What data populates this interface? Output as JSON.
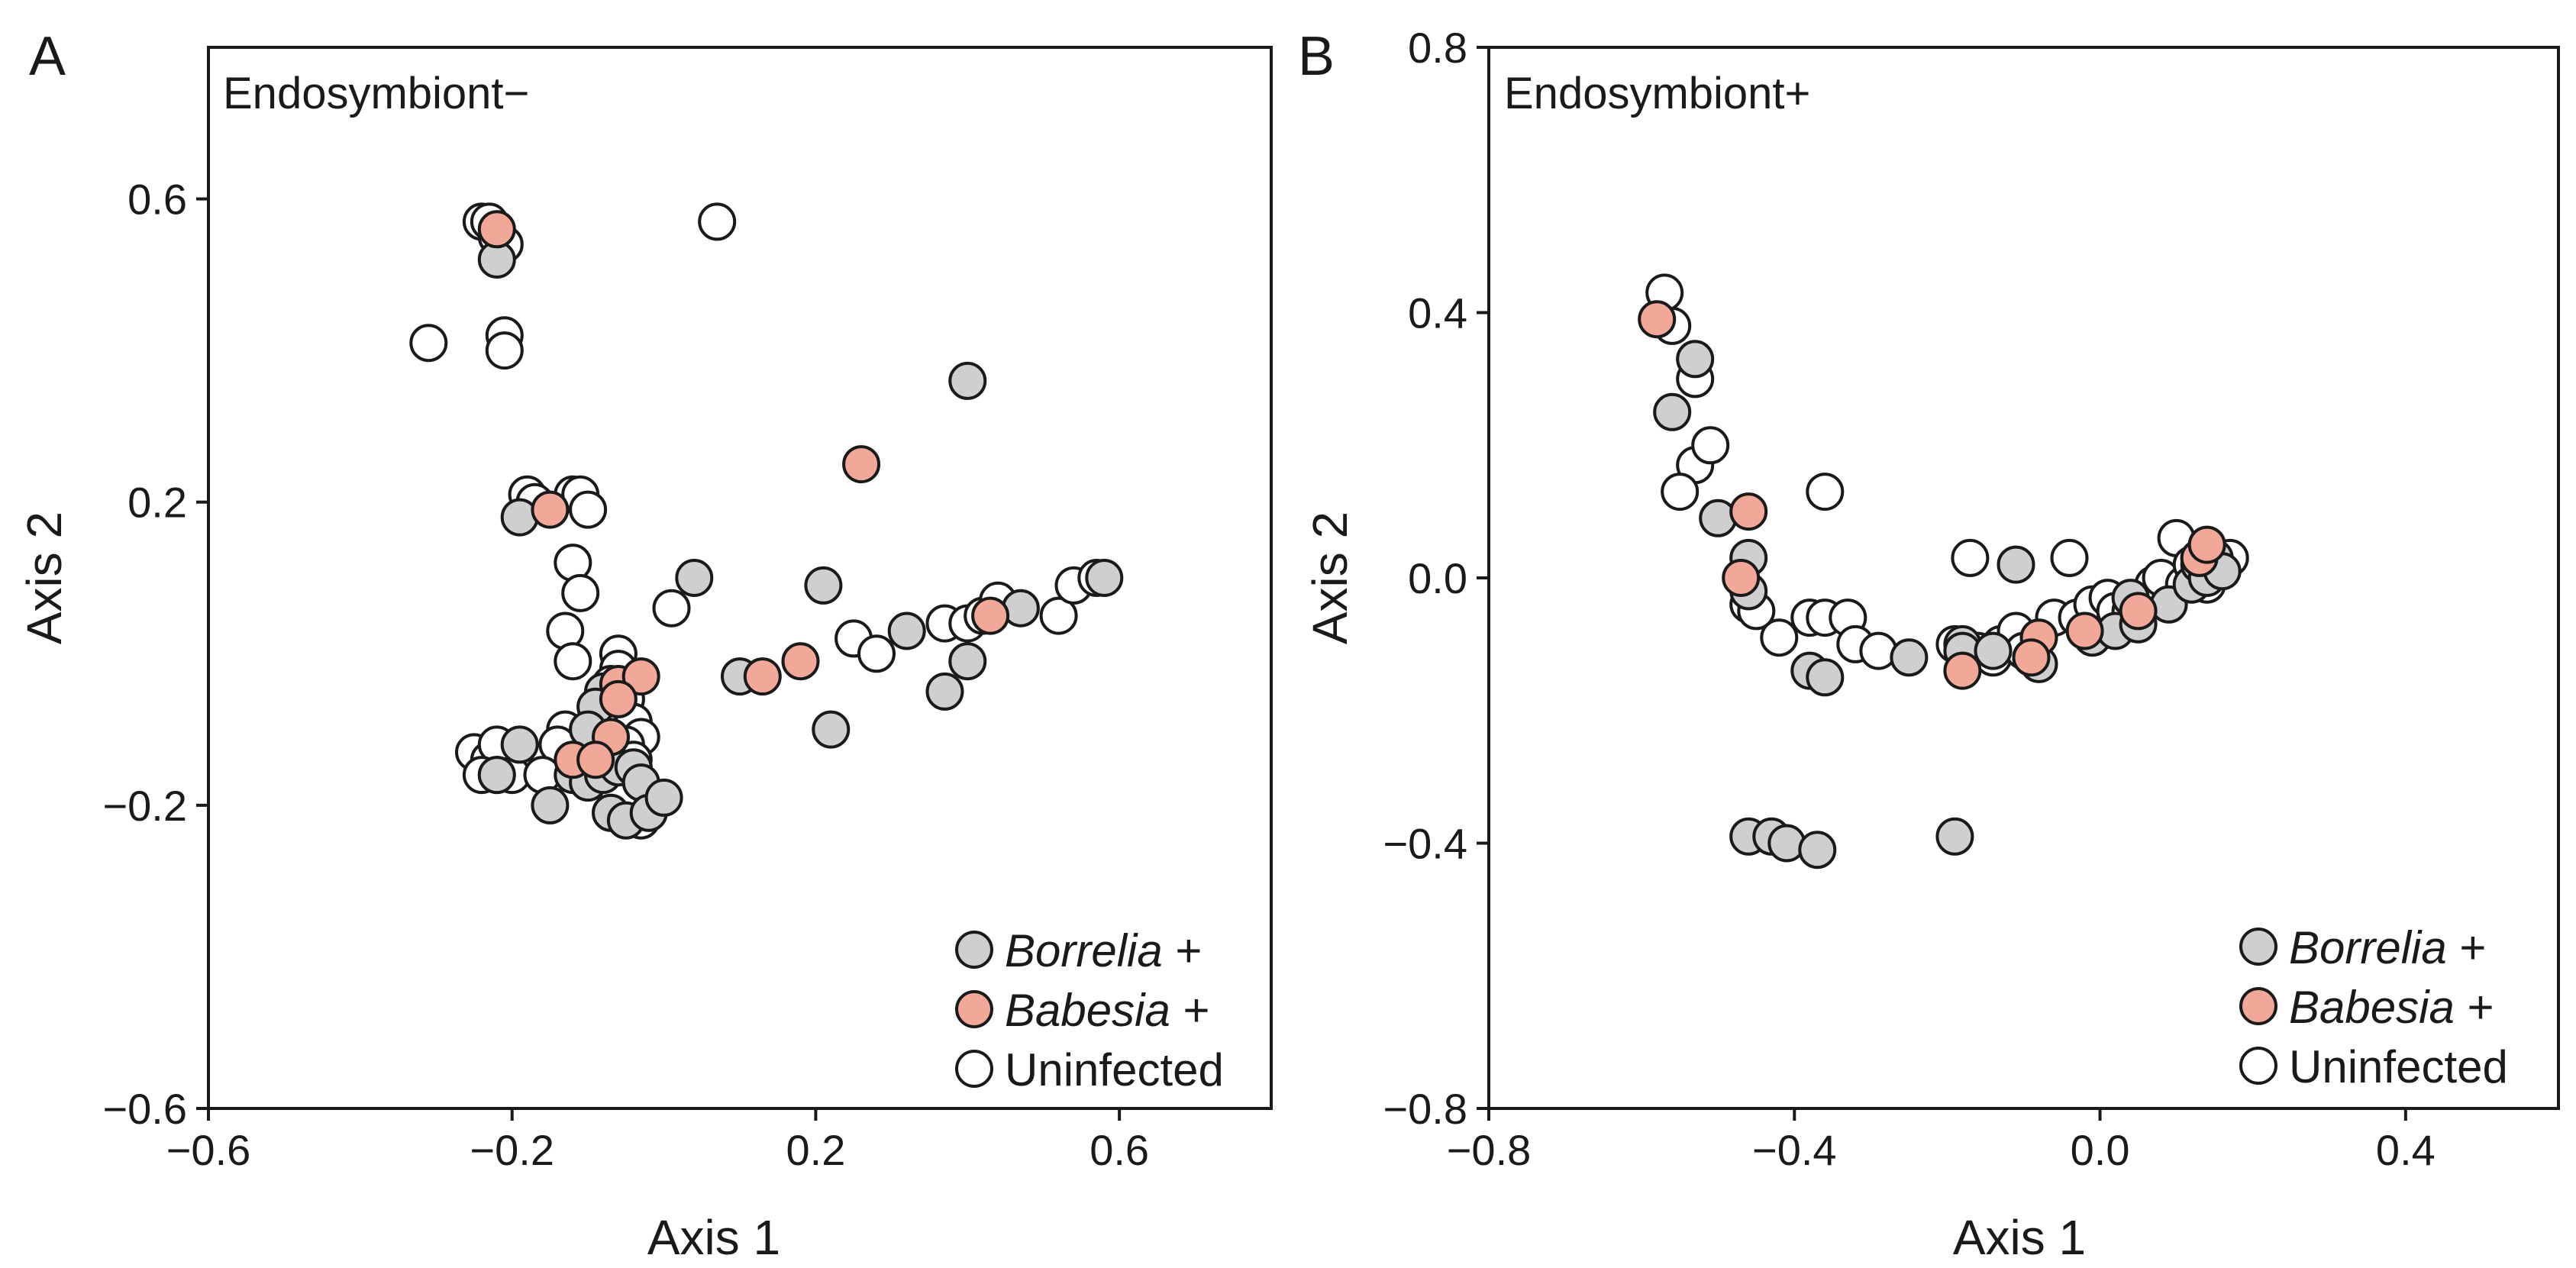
{
  "colors": {
    "borrelia": "#cfcfcf",
    "babesia": "#f2a898",
    "uninfected": "#ffffff",
    "stroke": "#1a1a1a"
  },
  "chart_data": [
    {
      "type": "scatter",
      "panel_label": "A",
      "title": "Endosymbiont−",
      "xlabel": "Axis 1",
      "ylabel": "Axis 2",
      "xlim": [
        -0.6,
        0.8
      ],
      "ylim": [
        -0.6,
        0.8
      ],
      "xticks": [
        -0.6,
        -0.2,
        0.2,
        0.6
      ],
      "xtick_labels": [
        "−0.6",
        "−0.2",
        "0.2",
        "0.6"
      ],
      "yticks": [
        -0.6,
        -0.2,
        0.2,
        0.6
      ],
      "ytick_labels": [
        "−0.6",
        "−0.2",
        "0.2",
        "0.6"
      ],
      "legend_position": "bottom-right",
      "legend": [
        {
          "key": "borrelia",
          "italic": "Borrelia",
          "suffix": " +"
        },
        {
          "key": "babesia",
          "italic": "Babesia",
          "suffix": " +"
        },
        {
          "key": "uninfected",
          "italic": "",
          "suffix": "Uninfected"
        }
      ],
      "series": [
        {
          "name": "Uninfected",
          "key": "uninfected",
          "points": [
            [
              -0.24,
              0.57
            ],
            [
              -0.23,
              0.57
            ],
            [
              -0.22,
              0.55
            ],
            [
              -0.21,
              0.54
            ],
            [
              -0.31,
              0.41
            ],
            [
              -0.21,
              0.42
            ],
            [
              -0.21,
              0.4
            ],
            [
              0.07,
              0.57
            ],
            [
              -0.18,
              0.21
            ],
            [
              -0.17,
              0.2
            ],
            [
              -0.12,
              0.21
            ],
            [
              -0.11,
              0.21
            ],
            [
              -0.1,
              0.19
            ],
            [
              -0.12,
              0.12
            ],
            [
              -0.11,
              0.08
            ],
            [
              -0.13,
              0.03
            ],
            [
              0.01,
              0.06
            ],
            [
              -0.12,
              -0.01
            ],
            [
              -0.06,
              0.0
            ],
            [
              -0.06,
              -0.02
            ],
            [
              -0.07,
              -0.04
            ],
            [
              -0.05,
              -0.06
            ],
            [
              -0.08,
              -0.07
            ],
            [
              -0.04,
              -0.09
            ],
            [
              -0.03,
              -0.11
            ],
            [
              -0.09,
              -0.11
            ],
            [
              -0.13,
              -0.1
            ],
            [
              -0.14,
              -0.12
            ],
            [
              -0.11,
              -0.14
            ],
            [
              -0.06,
              -0.15
            ],
            [
              -0.05,
              -0.12
            ],
            [
              -0.04,
              -0.14
            ],
            [
              -0.25,
              -0.13
            ],
            [
              -0.23,
              -0.14
            ],
            [
              -0.22,
              -0.12
            ],
            [
              -0.24,
              -0.16
            ],
            [
              -0.22,
              -0.16
            ],
            [
              -0.2,
              -0.16
            ],
            [
              -0.16,
              -0.16
            ],
            [
              -0.06,
              -0.19
            ],
            [
              -0.03,
              -0.22
            ],
            [
              0.25,
              0.02
            ],
            [
              0.28,
              0.0
            ],
            [
              0.37,
              0.04
            ],
            [
              0.4,
              0.04
            ],
            [
              0.42,
              0.05
            ],
            [
              0.44,
              0.07
            ],
            [
              0.52,
              0.05
            ],
            [
              0.54,
              0.09
            ],
            [
              0.57,
              0.1
            ]
          ]
        },
        {
          "name": "Borrelia +",
          "key": "borrelia",
          "points": [
            [
              -0.22,
              0.52
            ],
            [
              0.4,
              0.36
            ],
            [
              -0.19,
              0.18
            ],
            [
              0.04,
              0.1
            ],
            [
              0.21,
              0.09
            ],
            [
              0.32,
              0.03
            ],
            [
              0.47,
              0.06
            ],
            [
              0.58,
              0.1
            ],
            [
              0.1,
              -0.03
            ],
            [
              0.37,
              -0.05
            ],
            [
              0.4,
              -0.01
            ],
            [
              0.22,
              -0.1
            ],
            [
              -0.08,
              -0.05
            ],
            [
              -0.09,
              -0.07
            ],
            [
              -0.1,
              -0.1
            ],
            [
              -0.19,
              -0.12
            ],
            [
              -0.22,
              -0.16
            ],
            [
              -0.12,
              -0.16
            ],
            [
              -0.1,
              -0.17
            ],
            [
              -0.08,
              -0.16
            ],
            [
              -0.06,
              -0.15
            ],
            [
              -0.04,
              -0.15
            ],
            [
              -0.03,
              -0.17
            ],
            [
              -0.15,
              -0.2
            ],
            [
              -0.07,
              -0.21
            ],
            [
              -0.05,
              -0.22
            ],
            [
              -0.02,
              -0.21
            ],
            [
              0.0,
              -0.19
            ]
          ]
        },
        {
          "name": "Babesia +",
          "key": "babesia",
          "points": [
            [
              -0.22,
              0.56
            ],
            [
              -0.15,
              0.19
            ],
            [
              0.26,
              0.25
            ],
            [
              0.13,
              -0.03
            ],
            [
              0.18,
              -0.01
            ],
            [
              0.43,
              0.05
            ],
            [
              -0.06,
              -0.04
            ],
            [
              -0.03,
              -0.03
            ],
            [
              -0.06,
              -0.06
            ],
            [
              -0.07,
              -0.11
            ],
            [
              -0.12,
              -0.14
            ],
            [
              -0.09,
              -0.14
            ]
          ]
        }
      ]
    },
    {
      "type": "scatter",
      "panel_label": "B",
      "title": "Endosymbiont+",
      "xlabel": "Axis 1",
      "ylabel": "Axis 2",
      "xlim": [
        -0.8,
        0.6
      ],
      "ylim": [
        -0.8,
        0.8
      ],
      "xticks": [
        -0.8,
        -0.4,
        0.0,
        0.4
      ],
      "xtick_labels": [
        "−0.8",
        "−0.4",
        "0.0",
        "0.4"
      ],
      "yticks": [
        -0.8,
        -0.4,
        0.0,
        0.4,
        0.8
      ],
      "ytick_labels": [
        "−0.8",
        "−0.4",
        "0.0",
        "0.4",
        "0.8"
      ],
      "legend_position": "bottom-right",
      "legend": [
        {
          "key": "borrelia",
          "italic": "Borrelia",
          "suffix": " +"
        },
        {
          "key": "babesia",
          "italic": "Babesia",
          "suffix": " +"
        },
        {
          "key": "uninfected",
          "italic": "",
          "suffix": "Uninfected"
        }
      ],
      "series": [
        {
          "name": "Uninfected",
          "key": "uninfected",
          "points": [
            [
              -0.57,
              0.43
            ],
            [
              -0.56,
              0.38
            ],
            [
              -0.53,
              0.3
            ],
            [
              -0.53,
              0.17
            ],
            [
              -0.51,
              0.2
            ],
            [
              -0.55,
              0.13
            ],
            [
              -0.36,
              0.13
            ],
            [
              -0.46,
              -0.04
            ],
            [
              -0.45,
              -0.05
            ],
            [
              -0.42,
              -0.09
            ],
            [
              -0.38,
              -0.06
            ],
            [
              -0.36,
              -0.06
            ],
            [
              -0.33,
              -0.06
            ],
            [
              -0.32,
              -0.1
            ],
            [
              -0.29,
              -0.11
            ],
            [
              -0.17,
              0.03
            ],
            [
              -0.19,
              -0.1
            ],
            [
              -0.16,
              -0.11
            ],
            [
              -0.14,
              -0.12
            ],
            [
              -0.13,
              -0.1
            ],
            [
              -0.11,
              -0.08
            ],
            [
              -0.1,
              -0.11
            ],
            [
              -0.09,
              -0.12
            ],
            [
              -0.04,
              0.03
            ],
            [
              -0.06,
              -0.06
            ],
            [
              -0.03,
              -0.06
            ],
            [
              -0.01,
              -0.04
            ],
            [
              0.01,
              -0.03
            ],
            [
              0.02,
              -0.05
            ],
            [
              0.04,
              -0.05
            ],
            [
              0.05,
              -0.03
            ],
            [
              0.07,
              -0.01
            ],
            [
              0.08,
              0.0
            ],
            [
              0.1,
              0.06
            ],
            [
              0.11,
              -0.01
            ],
            [
              0.12,
              0.02
            ],
            [
              0.13,
              0.03
            ],
            [
              0.14,
              -0.01
            ],
            [
              0.16,
              0.02
            ],
            [
              0.17,
              0.03
            ]
          ]
        },
        {
          "name": "Borrelia +",
          "key": "borrelia",
          "points": [
            [
              -0.53,
              0.33
            ],
            [
              -0.56,
              0.25
            ],
            [
              -0.5,
              0.09
            ],
            [
              -0.46,
              0.03
            ],
            [
              -0.46,
              -0.02
            ],
            [
              -0.38,
              -0.14
            ],
            [
              -0.36,
              -0.15
            ],
            [
              -0.25,
              -0.12
            ],
            [
              -0.18,
              -0.1
            ],
            [
              -0.18,
              -0.11
            ],
            [
              -0.14,
              -0.11
            ],
            [
              -0.11,
              0.02
            ],
            [
              -0.08,
              -0.13
            ],
            [
              -0.01,
              -0.09
            ],
            [
              0.02,
              -0.08
            ],
            [
              0.04,
              -0.03
            ],
            [
              0.05,
              -0.07
            ],
            [
              0.09,
              -0.04
            ],
            [
              0.12,
              -0.01
            ],
            [
              0.13,
              0.02
            ],
            [
              0.14,
              0.0
            ],
            [
              0.15,
              0.03
            ],
            [
              0.16,
              0.01
            ],
            [
              -0.46,
              -0.39
            ],
            [
              -0.43,
              -0.39
            ],
            [
              -0.41,
              -0.4
            ],
            [
              -0.37,
              -0.41
            ],
            [
              -0.19,
              -0.39
            ]
          ]
        },
        {
          "name": "Babesia +",
          "key": "babesia",
          "points": [
            [
              -0.58,
              0.39
            ],
            [
              -0.46,
              0.1
            ],
            [
              -0.47,
              0.0
            ],
            [
              -0.18,
              -0.14
            ],
            [
              -0.08,
              -0.09
            ],
            [
              -0.09,
              -0.12
            ],
            [
              -0.02,
              -0.08
            ],
            [
              0.05,
              -0.05
            ],
            [
              0.13,
              0.03
            ],
            [
              0.14,
              0.05
            ]
          ]
        }
      ]
    }
  ]
}
